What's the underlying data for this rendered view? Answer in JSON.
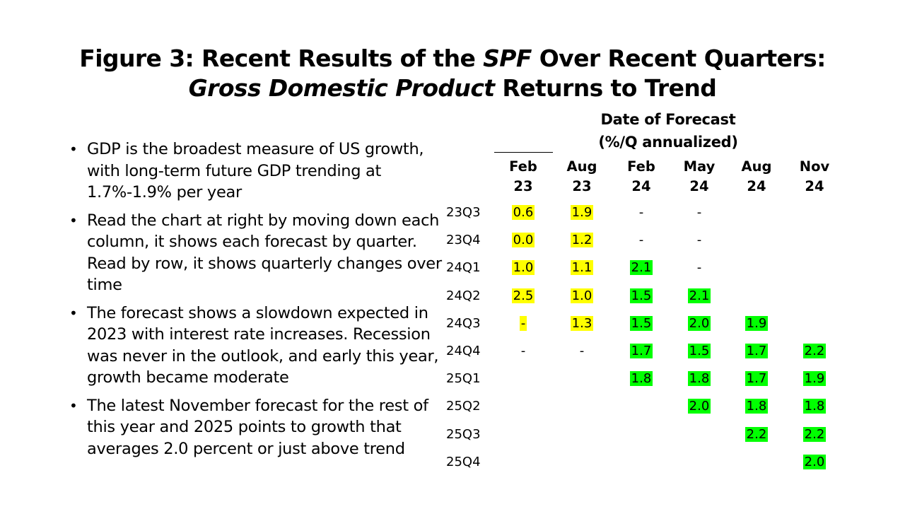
{
  "title": {
    "line1_a": "Figure 3: Recent Results of the ",
    "line1_em": "SPF",
    "line1_b": " Over Recent Quarters:",
    "line2_em": "Gross Domestic Product",
    "line2_b": " Returns to Trend"
  },
  "bullets": [
    "GDP is the broadest measure of US growth, with long-term future GDP trending at 1.7%-1.9% per year",
    "Read the chart at right by moving down each column, it shows each forecast by quarter. Read by row, it shows quarterly changes over time",
    "The forecast shows a slowdown expected in 2023 with interest rate increases. Recession was never in the outlook, and early this year, growth became moderate",
    "The latest November forecast for the rest of this year and 2025 points to growth that averages 2.0 percent or just above trend"
  ],
  "table": {
    "header_line1": "Date of Forecast",
    "header_line2": "(%/Q annualized)",
    "columns": [
      {
        "month": "Feb",
        "year": "23"
      },
      {
        "month": "Aug",
        "year": "23"
      },
      {
        "month": "Feb",
        "year": "24"
      },
      {
        "month": "May",
        "year": "24"
      },
      {
        "month": "Aug",
        "year": "24"
      },
      {
        "month": "Nov",
        "year": "24"
      }
    ],
    "rows": [
      {
        "label": "23Q3",
        "cells": [
          "0.6",
          "1.9",
          "-",
          "-",
          "",
          ""
        ]
      },
      {
        "label": "23Q4",
        "cells": [
          "0.0",
          "1.2",
          "-",
          "-",
          "",
          ""
        ]
      },
      {
        "label": "24Q1",
        "cells": [
          "1.0",
          "1.1",
          "2.1",
          "-",
          "",
          ""
        ]
      },
      {
        "label": "24Q2",
        "cells": [
          "2.5",
          "1.0",
          "1.5",
          "2.1",
          "",
          ""
        ]
      },
      {
        "label": "24Q3",
        "cells": [
          "-",
          "1.3",
          "1.5",
          "2.0",
          "1.9",
          ""
        ]
      },
      {
        "label": "24Q4",
        "cells": [
          "-",
          "-",
          "1.7",
          "1.5",
          "1.7",
          "2.2"
        ]
      },
      {
        "label": "25Q1",
        "cells": [
          "",
          "",
          "1.8",
          "1.8",
          "1.7",
          "1.9"
        ]
      },
      {
        "label": "25Q2",
        "cells": [
          "",
          "",
          "",
          "2.0",
          "1.8",
          "1.8"
        ]
      },
      {
        "label": "25Q3",
        "cells": [
          "",
          "",
          "",
          "",
          "2.2",
          "2.2"
        ]
      },
      {
        "label": "25Q4",
        "cells": [
          "",
          "",
          "",
          "",
          "",
          "2.0"
        ]
      }
    ],
    "highlight": [
      [
        "y",
        "y",
        "",
        "",
        "",
        ""
      ],
      [
        "y",
        "y",
        "",
        "",
        "",
        ""
      ],
      [
        "y",
        "y",
        "g",
        "",
        "",
        ""
      ],
      [
        "y",
        "y",
        "g",
        "g",
        "",
        ""
      ],
      [
        "y",
        "y",
        "g",
        "g",
        "g",
        ""
      ],
      [
        "",
        "",
        "g",
        "g",
        "g",
        "g"
      ],
      [
        "",
        "",
        "g",
        "g",
        "g",
        "g"
      ],
      [
        "",
        "",
        "",
        "g",
        "g",
        "g"
      ],
      [
        "",
        "",
        "",
        "",
        "g",
        "g"
      ],
      [
        "",
        "",
        "",
        "",
        "",
        "g"
      ]
    ],
    "colors": {
      "yellow": "#ffff00",
      "green": "#00ff00"
    }
  }
}
